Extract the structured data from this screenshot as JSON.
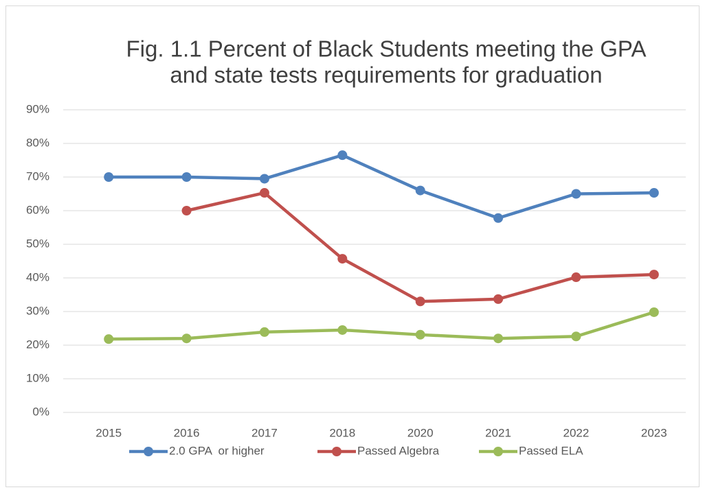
{
  "chart_data": {
    "type": "line",
    "title": [
      "Fig. 1.1 Percent of Black Students meeting the GPA",
      "and state tests requirements for graduation"
    ],
    "categories": [
      "2015",
      "2016",
      "2017",
      "2018",
      "2020",
      "2021",
      "2022",
      "2023"
    ],
    "series": [
      {
        "name": "2.0 GPA  or higher",
        "color": "#4f81bd",
        "values": [
          70,
          70,
          69.5,
          76.5,
          66,
          57.8,
          65,
          65.3
        ]
      },
      {
        "name": "Passed Algebra",
        "color": "#c0504d",
        "values": [
          null,
          60,
          65.3,
          45.7,
          33,
          33.7,
          40.2,
          41
        ]
      },
      {
        "name": "Passed ELA",
        "color": "#9bbb59",
        "values": [
          21.8,
          22,
          23.9,
          24.5,
          23.1,
          22,
          22.6,
          29.8
        ]
      }
    ],
    "ylim": [
      0,
      90
    ],
    "yticks": [
      {
        "value": 0,
        "label": "0%"
      },
      {
        "value": 10,
        "label": "10%"
      },
      {
        "value": 20,
        "label": "20%"
      },
      {
        "value": 30,
        "label": "30%"
      },
      {
        "value": 40,
        "label": "40%"
      },
      {
        "value": 50,
        "label": "50%"
      },
      {
        "value": 60,
        "label": "60%"
      },
      {
        "value": 70,
        "label": "70%"
      },
      {
        "value": 80,
        "label": "80%"
      },
      {
        "value": 90,
        "label": "90%"
      }
    ],
    "grid": true,
    "legend": "bottom"
  }
}
